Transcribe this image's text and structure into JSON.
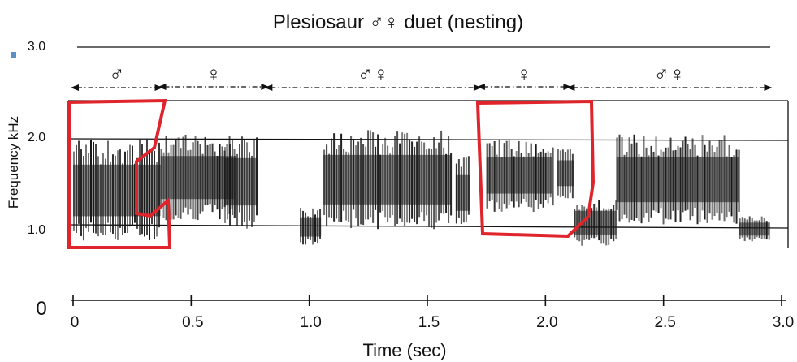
{
  "chart_data": {
    "type": "spectrogram",
    "title": "Plesiosaur ♂♀  duet  (nesting)",
    "xlabel": "Time (sec)",
    "ylabel": "Frequency kHz",
    "x_ticks": [
      0,
      0.5,
      1.0,
      1.5,
      2.0,
      2.5,
      3.0
    ],
    "x_tick_labels": [
      "0",
      "0.5",
      "1.0",
      "1.5",
      "2.0",
      "2.5",
      "3.0"
    ],
    "xlim": [
      0,
      3.0
    ],
    "y_ticks": [
      0,
      1.0,
      2.0,
      3.0
    ],
    "y_tick_labels": [
      "0",
      "1.0",
      "2.0",
      "3.0"
    ],
    "ylim": [
      0,
      3.0
    ],
    "grid_lines_y": [
      1.0,
      2.0,
      3.0
    ],
    "segments": [
      {
        "label": "♂",
        "start": 0.0,
        "end": 0.37
      },
      {
        "label": "♀",
        "start": 0.37,
        "end": 0.82
      },
      {
        "label": "♂♀",
        "start": 0.82,
        "end": 1.72
      },
      {
        "label": "♀",
        "start": 1.72,
        "end": 2.1
      },
      {
        "label": "♂♀",
        "start": 2.1,
        "end": 2.95
      }
    ],
    "highlighted_regions": [
      {
        "start": 0.0,
        "end": 0.4,
        "freq_low": 0.7,
        "freq_high": 2.4
      },
      {
        "start": 1.72,
        "end": 2.17,
        "freq_low": 0.85,
        "freq_high": 2.4
      }
    ],
    "calls": [
      {
        "start": 0.0,
        "end": 0.37,
        "freq_low": 0.8,
        "freq_high": 2.0
      },
      {
        "start": 0.37,
        "end": 0.68,
        "freq_low": 1.05,
        "freq_high": 2.05
      },
      {
        "start": 0.64,
        "end": 0.78,
        "freq_low": 0.95,
        "freq_high": 2.05
      },
      {
        "start": 0.96,
        "end": 1.05,
        "freq_low": 0.75,
        "freq_high": 1.2
      },
      {
        "start": 1.06,
        "end": 1.6,
        "freq_low": 0.95,
        "freq_high": 2.1
      },
      {
        "start": 1.62,
        "end": 1.68,
        "freq_low": 0.95,
        "freq_high": 1.8
      },
      {
        "start": 1.75,
        "end": 2.03,
        "freq_low": 1.15,
        "freq_high": 2.0
      },
      {
        "start": 2.05,
        "end": 2.12,
        "freq_low": 1.3,
        "freq_high": 1.9
      },
      {
        "start": 2.12,
        "end": 2.3,
        "freq_low": 0.75,
        "freq_high": 1.3
      },
      {
        "start": 2.3,
        "end": 2.82,
        "freq_low": 1.0,
        "freq_high": 2.05
      },
      {
        "start": 2.82,
        "end": 2.95,
        "freq_low": 0.8,
        "freq_high": 1.1
      }
    ],
    "grid": true,
    "legend": "none"
  },
  "marker_color": "#5b8fc6",
  "highlight_color": "#e0242b"
}
